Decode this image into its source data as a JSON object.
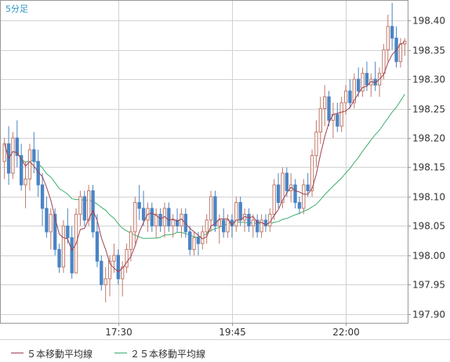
{
  "timeframe_label": "5分足",
  "legend": [
    {
      "label": "５本移動平均線",
      "color": "#a0414f"
    },
    {
      "label": "２５本移動平均線",
      "color": "#3cae6e"
    }
  ],
  "colors": {
    "bull": "#c07a6a",
    "bear": "#4a84c4",
    "ma5": "#a0414f",
    "ma25": "#3cae6e",
    "grid": "#d2d2d2",
    "frame": "#999999",
    "axis_text": "#333333"
  },
  "chart_data": {
    "type": "candlestick",
    "title": "",
    "xlabel": "",
    "ylabel": "",
    "ylim": [
      197.885,
      198.435
    ],
    "y_ticks": [
      198.4,
      198.35,
      198.3,
      198.25,
      198.2,
      198.15,
      198.1,
      198.05,
      198.0,
      197.95,
      197.9
    ],
    "y_tick_labels": [
      "198.40",
      "198.35",
      "198.30",
      "198.25",
      "198.20",
      "198.15",
      "198.10",
      "198.05",
      "198.00",
      "197.95",
      "197.90"
    ],
    "x_ticks": [
      {
        "label": "17:30",
        "index": 27
      },
      {
        "label": "19:45",
        "index": 54
      },
      {
        "label": "22:00",
        "index": 81
      }
    ],
    "grid": true,
    "legend_position": "bottom-left",
    "candles": [
      [
        198.16,
        198.2,
        198.13,
        198.19
      ],
      [
        198.19,
        198.22,
        198.12,
        198.14
      ],
      [
        198.14,
        198.21,
        198.13,
        198.2
      ],
      [
        198.2,
        198.23,
        198.15,
        198.17
      ],
      [
        198.17,
        198.19,
        198.11,
        198.12
      ],
      [
        198.12,
        198.16,
        198.08,
        198.13
      ],
      [
        198.13,
        198.19,
        198.11,
        198.18
      ],
      [
        198.18,
        198.21,
        198.14,
        198.16
      ],
      [
        198.16,
        198.18,
        198.1,
        198.12
      ],
      [
        198.12,
        198.14,
        198.05,
        198.08
      ],
      [
        198.08,
        198.1,
        198.03,
        198.04
      ],
      [
        198.04,
        198.08,
        198.01,
        198.07
      ],
      [
        198.07,
        198.08,
        198.0,
        198.01
      ],
      [
        198.01,
        198.02,
        197.97,
        197.98
      ],
      [
        197.98,
        198.06,
        197.97,
        198.05
      ],
      [
        198.05,
        198.08,
        198.02,
        198.03
      ],
      [
        198.03,
        198.05,
        197.96,
        197.97
      ],
      [
        197.97,
        198.08,
        197.97,
        198.07
      ],
      [
        198.07,
        198.11,
        198.05,
        198.1
      ],
      [
        198.1,
        198.11,
        198.05,
        198.06
      ],
      [
        198.06,
        198.12,
        198.05,
        198.11
      ],
      [
        198.11,
        198.12,
        198.03,
        198.04
      ],
      [
        198.04,
        198.07,
        197.98,
        197.99
      ],
      [
        197.99,
        198.0,
        197.94,
        197.95
      ],
      [
        197.95,
        197.98,
        197.92,
        197.96
      ],
      [
        197.96,
        198.0,
        197.93,
        197.99
      ],
      [
        197.99,
        198.02,
        197.97,
        198.0
      ],
      [
        198.0,
        198.01,
        197.95,
        197.96
      ],
      [
        197.96,
        197.99,
        197.93,
        197.98
      ],
      [
        197.98,
        198.02,
        197.97,
        198.01
      ],
      [
        198.01,
        198.05,
        197.99,
        198.04
      ],
      [
        198.04,
        198.1,
        198.02,
        198.09
      ],
      [
        198.09,
        198.12,
        198.06,
        198.08
      ],
      [
        198.08,
        198.11,
        198.05,
        198.06
      ],
      [
        198.06,
        198.09,
        198.04,
        198.08
      ],
      [
        198.08,
        198.09,
        198.04,
        198.05
      ],
      [
        198.05,
        198.08,
        198.03,
        198.07
      ],
      [
        198.07,
        198.08,
        198.04,
        198.05
      ],
      [
        198.05,
        198.09,
        198.03,
        198.08
      ],
      [
        198.08,
        198.09,
        198.04,
        198.05
      ],
      [
        198.05,
        198.07,
        198.03,
        198.06
      ],
      [
        198.06,
        198.08,
        198.04,
        198.05
      ],
      [
        198.05,
        198.08,
        198.03,
        198.07
      ],
      [
        198.07,
        198.08,
        198.03,
        198.04
      ],
      [
        198.04,
        198.05,
        198.0,
        198.01
      ],
      [
        198.01,
        198.04,
        198.0,
        198.03
      ],
      [
        198.03,
        198.04,
        198.0,
        198.02
      ],
      [
        198.02,
        198.05,
        198.01,
        198.04
      ],
      [
        198.04,
        198.07,
        198.02,
        198.06
      ],
      [
        198.06,
        198.11,
        198.04,
        198.1
      ],
      [
        198.1,
        198.11,
        198.04,
        198.05
      ],
      [
        198.05,
        198.07,
        198.02,
        198.06
      ],
      [
        198.06,
        198.08,
        198.03,
        198.04
      ],
      [
        198.04,
        198.07,
        198.03,
        198.06
      ],
      [
        198.06,
        198.07,
        198.03,
        198.05
      ],
      [
        198.05,
        198.1,
        198.04,
        198.09
      ],
      [
        198.09,
        198.1,
        198.05,
        198.06
      ],
      [
        198.06,
        198.08,
        198.04,
        198.07
      ],
      [
        198.07,
        198.08,
        198.04,
        198.05
      ],
      [
        198.05,
        198.07,
        198.03,
        198.06
      ],
      [
        198.06,
        198.07,
        198.03,
        198.04
      ],
      [
        198.04,
        198.07,
        198.03,
        198.06
      ],
      [
        198.06,
        198.07,
        198.04,
        198.05
      ],
      [
        198.05,
        198.08,
        198.04,
        198.07
      ],
      [
        198.07,
        198.13,
        198.06,
        198.12
      ],
      [
        198.12,
        198.14,
        198.08,
        198.09
      ],
      [
        198.09,
        198.15,
        198.08,
        198.14
      ],
      [
        198.14,
        198.15,
        198.1,
        198.11
      ],
      [
        198.11,
        198.14,
        198.09,
        198.12
      ],
      [
        198.12,
        198.13,
        198.08,
        198.09
      ],
      [
        198.09,
        198.1,
        198.07,
        198.08
      ],
      [
        198.08,
        198.13,
        198.07,
        198.12
      ],
      [
        198.12,
        198.14,
        198.1,
        198.11
      ],
      [
        198.11,
        198.18,
        198.1,
        198.17
      ],
      [
        198.17,
        198.23,
        198.15,
        198.21
      ],
      [
        198.21,
        198.27,
        198.19,
        198.25
      ],
      [
        198.25,
        198.29,
        198.22,
        198.27
      ],
      [
        198.27,
        198.28,
        198.22,
        198.23
      ],
      [
        198.23,
        198.26,
        198.2,
        198.24
      ],
      [
        198.24,
        198.26,
        198.21,
        198.22
      ],
      [
        198.22,
        198.27,
        198.21,
        198.26
      ],
      [
        198.26,
        198.29,
        198.24,
        198.28
      ],
      [
        198.28,
        198.3,
        198.25,
        198.26
      ],
      [
        198.26,
        198.31,
        198.25,
        198.3
      ],
      [
        198.3,
        198.32,
        198.27,
        198.28
      ],
      [
        198.28,
        198.32,
        198.27,
        198.31
      ],
      [
        198.31,
        198.33,
        198.28,
        198.29
      ],
      [
        198.29,
        198.31,
        198.27,
        198.3
      ],
      [
        198.3,
        198.33,
        198.28,
        198.29
      ],
      [
        198.29,
        198.32,
        198.27,
        198.31
      ],
      [
        198.31,
        198.36,
        198.3,
        198.35
      ],
      [
        198.35,
        198.41,
        198.33,
        198.39
      ],
      [
        198.39,
        198.43,
        198.35,
        198.37
      ],
      [
        198.37,
        198.39,
        198.32,
        198.33
      ],
      [
        198.33,
        198.37,
        198.32,
        198.36
      ],
      [
        198.36,
        198.37,
        198.34,
        198.365
      ]
    ]
  }
}
